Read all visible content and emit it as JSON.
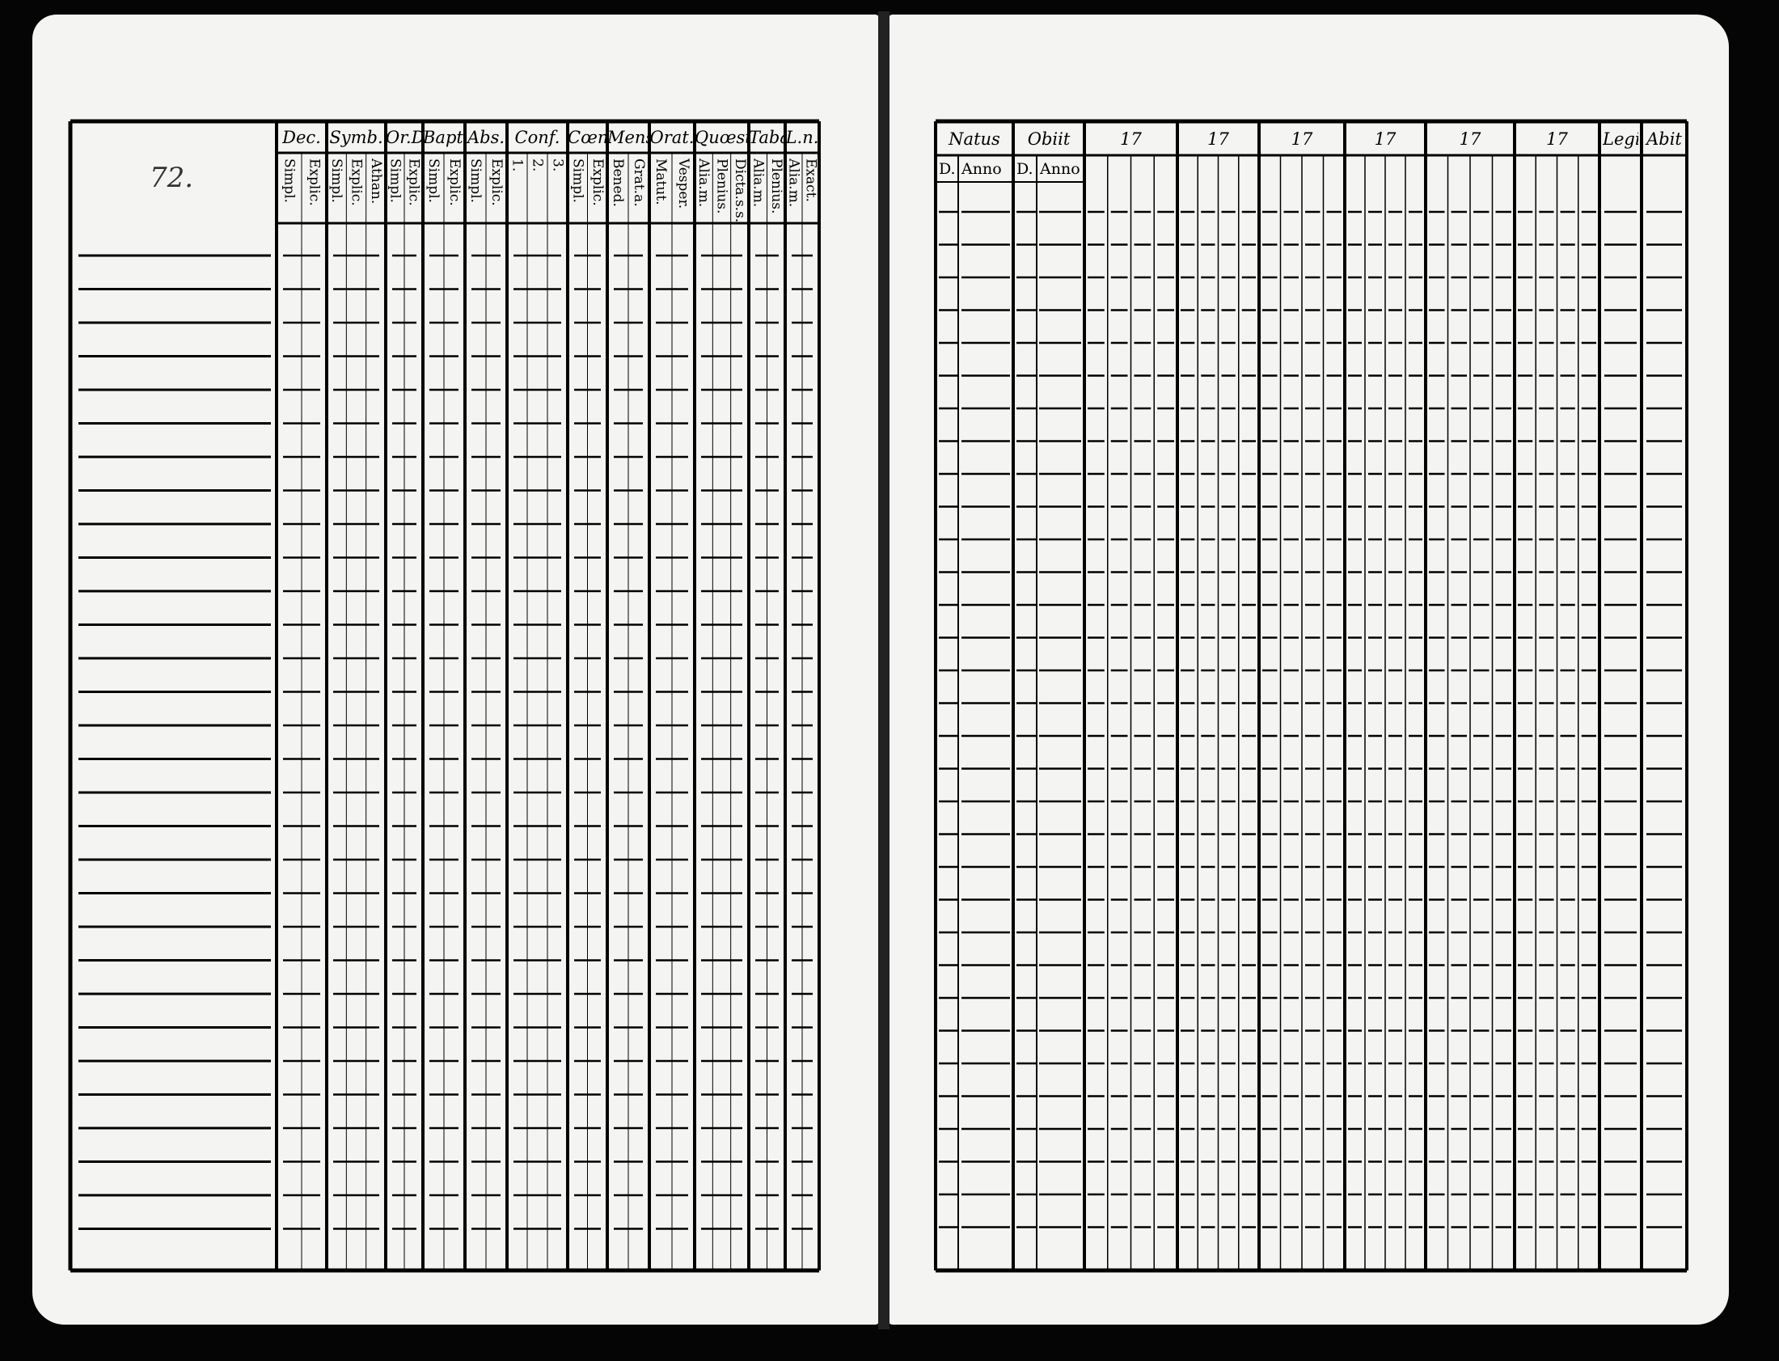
{
  "page_number": "72.",
  "left_table": {
    "columns": [
      {
        "header": "Dec.",
        "sub": [
          "Explic.",
          "Simpl."
        ]
      },
      {
        "header": "Symb.",
        "sub": [
          "Athan.",
          "Explic.",
          "Simpl."
        ]
      },
      {
        "header": "Or.D",
        "sub": [
          "Explic.",
          "Simpl."
        ]
      },
      {
        "header": "Bapt.",
        "sub": [
          "Explic.",
          "Simpl."
        ]
      },
      {
        "header": "Abs.",
        "sub": [
          "Explic.",
          "Simpl."
        ]
      },
      {
        "header": "Conf.",
        "sub": [
          "3.",
          "2.",
          "1."
        ]
      },
      {
        "header": "Cœn.D",
        "sub": [
          "Explic.",
          "Simpl."
        ]
      },
      {
        "header": "Mens.",
        "sub": [
          "Grat.a.",
          "Bened."
        ]
      },
      {
        "header": "Orat.",
        "sub": [
          "Vesper.",
          "Matut."
        ]
      },
      {
        "header": "Quœst.",
        "sub": [
          "Dicta.s.s.",
          "Plenius.",
          "Alia.m."
        ]
      },
      {
        "header": "Tabæ",
        "sub": [
          "Plenius.",
          "Alia.m."
        ]
      },
      {
        "header": "L.n.",
        "sub": [
          "Exact.",
          "Alia.m."
        ]
      }
    ]
  },
  "right_table": {
    "headers": [
      "Natus",
      "Obiit",
      "17",
      "17",
      "17",
      "17",
      "17",
      "17",
      "Legit",
      "Abit"
    ],
    "sub": [
      "D.",
      "Anno",
      "D.",
      "Anno"
    ]
  }
}
